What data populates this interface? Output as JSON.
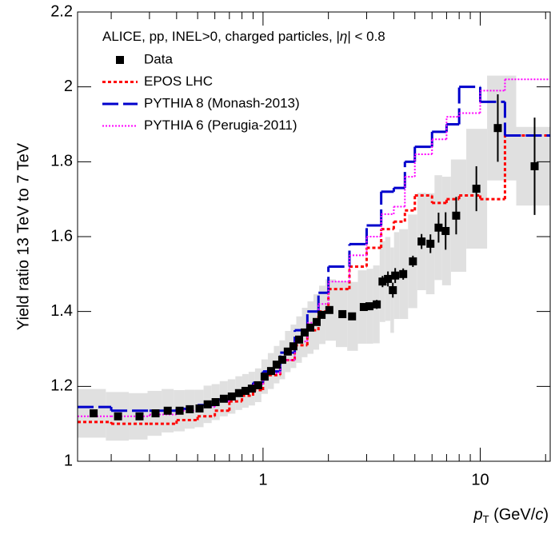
{
  "chart_data": {
    "type": "scatter",
    "title_parts": [
      "ALICE, pp, INEL>0, charged particles, |",
      "η",
      "| < 0.8"
    ],
    "y_label": "Yield ratio 13 TeV to 7 TeV",
    "x_label_parts": [
      "p",
      "T",
      " (GeV/",
      "c",
      ")"
    ],
    "xlog": true,
    "xlim": [
      0.14,
      21
    ],
    "ylim": [
      1,
      2.2
    ],
    "xticks": [
      1,
      10
    ],
    "xminor_ticks": [
      0.2,
      0.3,
      0.4,
      0.5,
      0.6,
      0.7,
      0.8,
      0.9,
      2,
      3,
      4,
      5,
      6,
      7,
      8,
      9,
      20
    ],
    "yticks": [
      1,
      1.2,
      1.4,
      1.6,
      1.8,
      2,
      2.2
    ],
    "syst_color": "#e0e0e0",
    "model_bins": [
      0.14,
      0.2,
      0.3,
      0.4,
      0.5,
      0.6,
      0.7,
      0.8,
      0.9,
      1.0,
      1.2,
      1.4,
      1.6,
      1.8,
      2.0,
      2.5,
      3.0,
      3.5,
      4.0,
      4.5,
      5.0,
      6.0,
      7.0,
      8.0,
      10.0,
      13.0,
      21
    ],
    "series": [
      {
        "name": "Data",
        "style": "points",
        "color": "#000000",
        "x": [
          0.166,
          0.215,
          0.27,
          0.32,
          0.364,
          0.413,
          0.46,
          0.51,
          0.556,
          0.605,
          0.66,
          0.718,
          0.775,
          0.83,
          0.888,
          0.95,
          1.017,
          1.089,
          1.155,
          1.226,
          1.3,
          1.38,
          1.466,
          1.555,
          1.65,
          1.766,
          1.86,
          2.02,
          2.32,
          2.57,
          2.91,
          3.09,
          3.34,
          3.55,
          3.76,
          3.96,
          4.06,
          4.42,
          4.9,
          5.37,
          5.9,
          6.43,
          6.93,
          7.75,
          9.6,
          12.05,
          17.8
        ],
        "values": [
          1.128,
          1.12,
          1.12,
          1.128,
          1.135,
          1.135,
          1.139,
          1.141,
          1.152,
          1.158,
          1.167,
          1.173,
          1.182,
          1.188,
          1.194,
          1.203,
          1.226,
          1.241,
          1.258,
          1.271,
          1.293,
          1.307,
          1.325,
          1.344,
          1.357,
          1.372,
          1.391,
          1.404,
          1.393,
          1.387,
          1.412,
          1.414,
          1.419,
          1.48,
          1.487,
          1.457,
          1.496,
          1.5,
          1.534,
          1.587,
          1.581,
          1.624,
          1.615,
          1.656,
          1.728,
          1.89,
          1.788
        ],
        "yerr": [
          0.005,
          0.005,
          0.005,
          0.005,
          0.005,
          0.005,
          0.005,
          0.005,
          0.005,
          0.005,
          0.005,
          0.005,
          0.005,
          0.005,
          0.005,
          0.005,
          0.006,
          0.006,
          0.006,
          0.006,
          0.007,
          0.007,
          0.007,
          0.008,
          0.008,
          0.008,
          0.009,
          0.009,
          0.01,
          0.01,
          0.01,
          0.01,
          0.012,
          0.015,
          0.02,
          0.02,
          0.02,
          0.015,
          0.015,
          0.02,
          0.025,
          0.04,
          0.05,
          0.05,
          0.06,
          0.09,
          0.13
        ],
        "syst": [
          0.065,
          0.065,
          0.062,
          0.06,
          0.058,
          0.055,
          0.052,
          0.05,
          0.05,
          0.048,
          0.047,
          0.046,
          0.045,
          0.045,
          0.045,
          0.045,
          0.046,
          0.048,
          0.05,
          0.052,
          0.055,
          0.058,
          0.062,
          0.066,
          0.07,
          0.074,
          0.078,
          0.082,
          0.088,
          0.092,
          0.098,
          0.1,
          0.104,
          0.108,
          0.112,
          0.114,
          0.116,
          0.12,
          0.125,
          0.13,
          0.135,
          0.14,
          0.145,
          0.15,
          0.16,
          0.14,
          0.105
        ]
      },
      {
        "name": "EPOS LHC",
        "style": "step",
        "dash": "4,3",
        "width": 3,
        "color": "#ff0000",
        "values": [
          1.105,
          1.1,
          1.1,
          1.11,
          1.12,
          1.135,
          1.16,
          1.175,
          1.19,
          1.23,
          1.27,
          1.31,
          1.35,
          1.4,
          1.46,
          1.52,
          1.57,
          1.62,
          1.64,
          1.67,
          1.71,
          1.69,
          1.7,
          1.71,
          1.7,
          1.87
        ]
      },
      {
        "name": "PYTHIA 8 (Monash-2013)",
        "style": "step",
        "dash": "20,6",
        "width": 3,
        "color": "#0000cc",
        "values": [
          1.145,
          1.135,
          1.135,
          1.14,
          1.15,
          1.165,
          1.18,
          1.19,
          1.21,
          1.24,
          1.29,
          1.35,
          1.4,
          1.45,
          1.52,
          1.58,
          1.63,
          1.72,
          1.73,
          1.8,
          1.84,
          1.88,
          1.9,
          2.0,
          1.96,
          1.87
        ]
      },
      {
        "name": "PYTHIA 6 (Perugia-2011)",
        "style": "step",
        "dash": "2,2",
        "width": 2,
        "color": "#ff00ff",
        "values": [
          1.12,
          1.12,
          1.125,
          1.135,
          1.145,
          1.16,
          1.175,
          1.19,
          1.205,
          1.235,
          1.27,
          1.32,
          1.37,
          1.42,
          1.48,
          1.55,
          1.6,
          1.66,
          1.68,
          1.76,
          1.82,
          1.86,
          1.92,
          1.93,
          1.99,
          2.02
        ]
      }
    ]
  }
}
